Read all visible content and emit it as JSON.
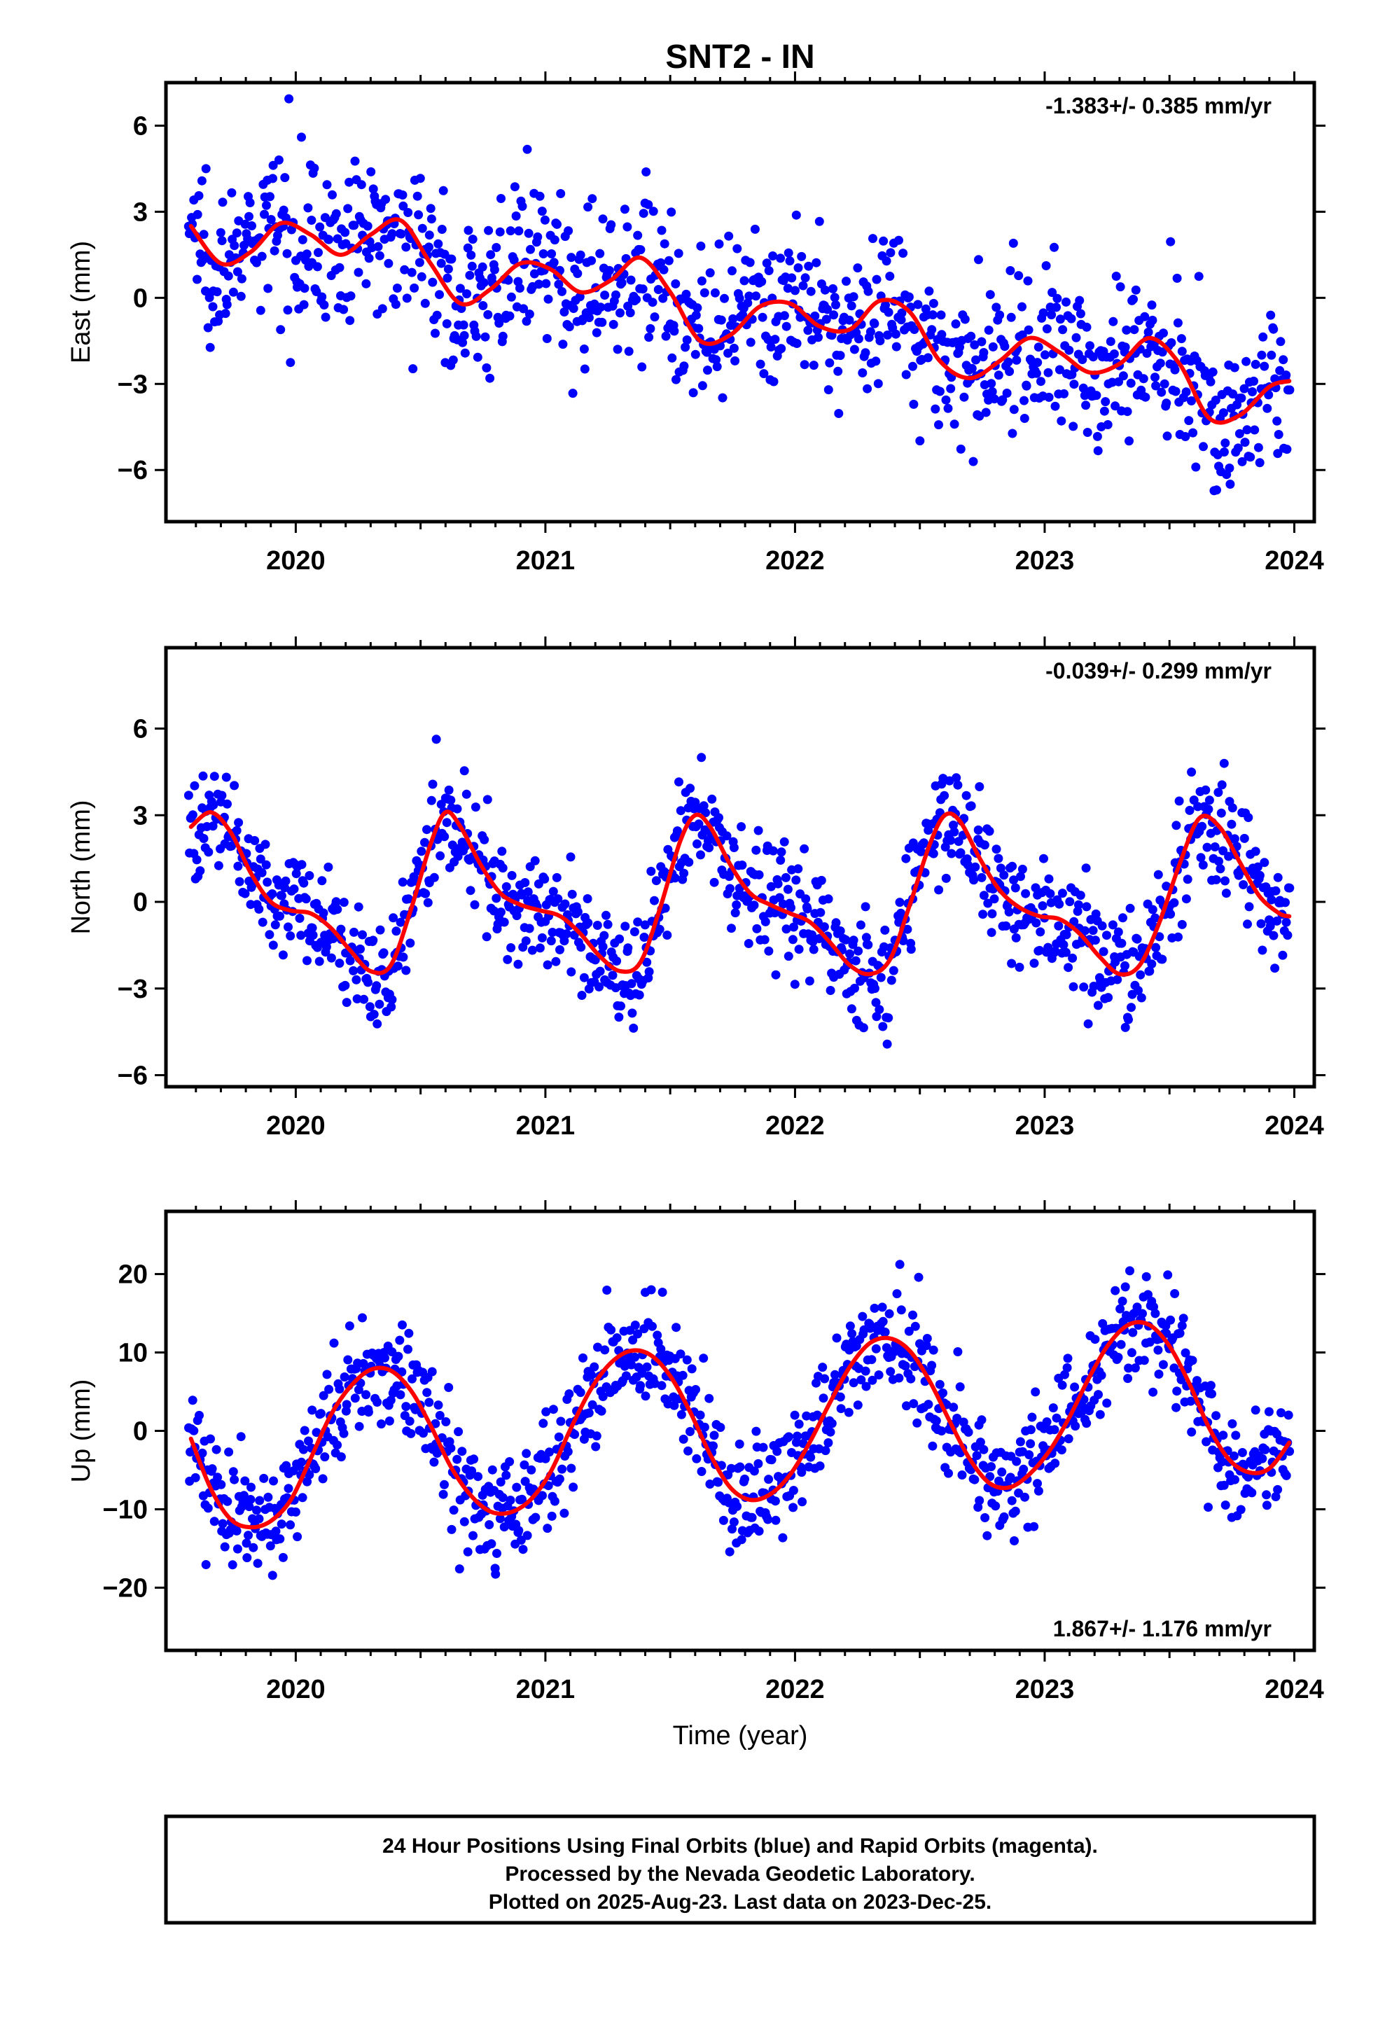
{
  "chart_data": {
    "title": "SNT2 - IN",
    "type": "scatter",
    "x_label": "Time (year)",
    "x_ticks": [
      2020,
      2021,
      2022,
      2023,
      2024
    ],
    "xlim": [
      2019.48,
      2024.08
    ],
    "series_legend": {
      "final_orbits": "blue",
      "model_fit": "red"
    },
    "colors": {
      "points": "#0000ff",
      "fit": "#ff0000",
      "frame": "#000000"
    },
    "panels": [
      {
        "name": "east",
        "ylabel": "East (mm)",
        "ylim": [
          -7.8,
          7.5
        ],
        "yticks": [
          -6,
          -3,
          0,
          3,
          6
        ],
        "rate_text": "-1.383+/- 0.385 mm/yr",
        "rate_position": "top-right",
        "fit": {
          "x": [
            2019.58,
            2019.7,
            2019.82,
            2019.94,
            2020.06,
            2020.18,
            2020.3,
            2020.42,
            2020.54,
            2020.66,
            2020.78,
            2020.9,
            2021.02,
            2021.14,
            2021.26,
            2021.38,
            2021.5,
            2021.62,
            2021.74,
            2021.86,
            2021.98,
            2022.1,
            2022.22,
            2022.34,
            2022.46,
            2022.58,
            2022.7,
            2022.82,
            2022.94,
            2023.06,
            2023.18,
            2023.3,
            2023.42,
            2023.54,
            2023.66,
            2023.78,
            2023.9,
            2023.98
          ],
          "y": [
            2.5,
            1.2,
            1.6,
            2.6,
            2.2,
            1.5,
            2.2,
            2.7,
            1.2,
            -0.2,
            0.3,
            1.2,
            1.0,
            0.2,
            0.6,
            1.4,
            0.2,
            -1.5,
            -1.3,
            -0.3,
            -0.2,
            -1.0,
            -1.1,
            -0.1,
            -0.5,
            -2.2,
            -2.8,
            -2.2,
            -1.4,
            -1.9,
            -2.6,
            -2.3,
            -1.4,
            -2.3,
            -4.2,
            -4.1,
            -3.1,
            -2.9
          ]
        },
        "points": {
          "x_start": 2019.57,
          "x_end": 2023.98,
          "n": 1050,
          "scatter": 1.35
        }
      },
      {
        "name": "north",
        "ylabel": "North (mm)",
        "ylim": [
          -6.4,
          8.8
        ],
        "yticks": [
          -6,
          -3,
          0,
          3,
          6
        ],
        "rate_text": "-0.039+/- 0.299 mm/yr",
        "rate_position": "top-right",
        "fit": {
          "x": [
            2019.58,
            2019.66,
            2019.74,
            2019.82,
            2019.9,
            2019.98,
            2020.06,
            2020.14,
            2020.22,
            2020.3,
            2020.38,
            2020.46,
            2020.54,
            2020.6,
            2020.66,
            2020.74,
            2020.82,
            2020.9,
            2020.98,
            2021.06,
            2021.14,
            2021.22,
            2021.3,
            2021.38,
            2021.46,
            2021.54,
            2021.6,
            2021.66,
            2021.74,
            2021.82,
            2021.9,
            2021.98,
            2022.06,
            2022.14,
            2022.22,
            2022.3,
            2022.38,
            2022.46,
            2022.54,
            2022.6,
            2022.66,
            2022.74,
            2022.82,
            2022.9,
            2022.98,
            2023.06,
            2023.14,
            2023.22,
            2023.3,
            2023.38,
            2023.46,
            2023.54,
            2023.62,
            2023.7,
            2023.78,
            2023.86,
            2023.94,
            2023.98
          ],
          "y": [
            2.6,
            3.1,
            2.4,
            1.0,
            0.0,
            -0.3,
            -0.4,
            -0.9,
            -1.7,
            -2.4,
            -2.2,
            -0.3,
            2.0,
            3.1,
            2.6,
            1.3,
            0.3,
            -0.1,
            -0.3,
            -0.5,
            -1.1,
            -1.9,
            -2.4,
            -2.1,
            -0.2,
            2.1,
            3.0,
            2.6,
            1.3,
            0.3,
            -0.1,
            -0.4,
            -0.7,
            -1.4,
            -2.2,
            -2.5,
            -2.0,
            -0.1,
            2.0,
            3.0,
            2.8,
            1.5,
            0.4,
            -0.2,
            -0.5,
            -0.6,
            -1.1,
            -1.9,
            -2.5,
            -2.2,
            -0.7,
            1.3,
            2.9,
            2.6,
            1.4,
            0.2,
            -0.4,
            -0.5
          ]
        },
        "points": {
          "x_start": 2019.57,
          "x_end": 2023.98,
          "n": 1050,
          "scatter": 0.95
        }
      },
      {
        "name": "up",
        "ylabel": "Up (mm)",
        "ylim": [
          -28,
          28
        ],
        "yticks": [
          -20,
          -10,
          0,
          10,
          20
        ],
        "rate_text": "1.867+/- 1.176 mm/yr",
        "rate_position": "bottom-right",
        "fit": {
          "x": [
            2019.58,
            2019.66,
            2019.74,
            2019.82,
            2019.9,
            2019.98,
            2020.06,
            2020.14,
            2020.22,
            2020.3,
            2020.38,
            2020.46,
            2020.54,
            2020.62,
            2020.7,
            2020.78,
            2020.86,
            2020.94,
            2021.02,
            2021.1,
            2021.18,
            2021.26,
            2021.34,
            2021.42,
            2021.5,
            2021.58,
            2021.66,
            2021.74,
            2021.82,
            2021.9,
            2021.98,
            2022.06,
            2022.14,
            2022.22,
            2022.3,
            2022.38,
            2022.46,
            2022.54,
            2022.62,
            2022.7,
            2022.78,
            2022.86,
            2022.94,
            2023.02,
            2023.1,
            2023.18,
            2023.26,
            2023.34,
            2023.42,
            2023.5,
            2023.58,
            2023.66,
            2023.74,
            2023.82,
            2023.9,
            2023.98
          ],
          "y": [
            -1.0,
            -7.4,
            -11.3,
            -12.3,
            -11.5,
            -8.8,
            -3.5,
            2.0,
            5.7,
            7.8,
            7.7,
            5.2,
            0.7,
            -4.5,
            -8.2,
            -10.3,
            -10.4,
            -8.8,
            -5.3,
            0.2,
            5.2,
            8.6,
            10.2,
            9.7,
            7.0,
            2.4,
            -3.0,
            -7.2,
            -8.8,
            -8.1,
            -5.6,
            -1.4,
            3.6,
            8.2,
            11.2,
            11.8,
            10.2,
            6.3,
            1.2,
            -3.6,
            -6.7,
            -7.2,
            -5.5,
            -2.5,
            1.8,
            6.9,
            11.2,
            13.6,
            13.5,
            10.8,
            6.0,
            0.3,
            -3.7,
            -5.3,
            -4.8,
            -1.5
          ]
        },
        "points": {
          "x_start": 2019.57,
          "x_end": 2023.98,
          "n": 1050,
          "scatter": 3.6
        }
      }
    ]
  },
  "footer": {
    "line1": "24 Hour Positions Using Final Orbits (blue) and Rapid Orbits (magenta).",
    "line2": "Processed by the Nevada Geodetic Laboratory.",
    "line3": "Plotted on 2025-Aug-23. Last data on 2023-Dec-25."
  }
}
